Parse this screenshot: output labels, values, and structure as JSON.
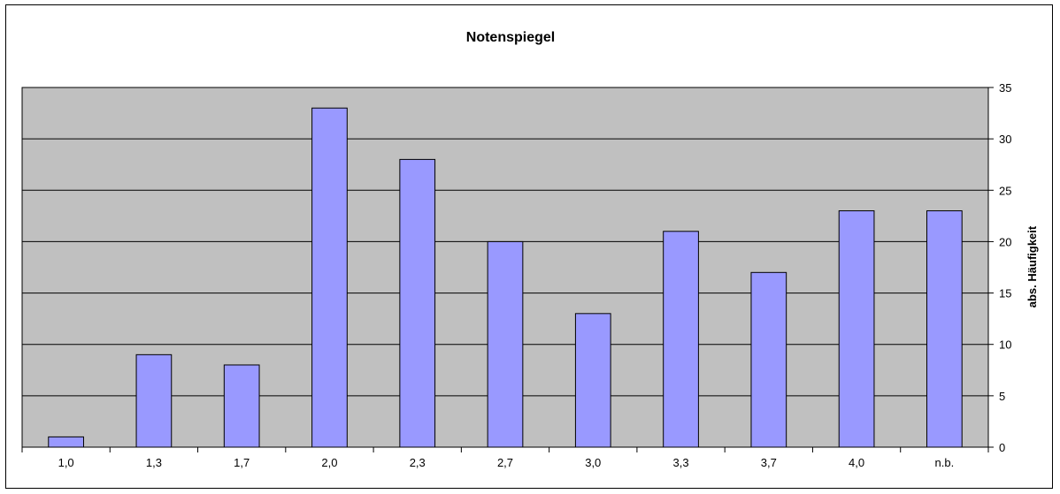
{
  "chart_data": {
    "type": "bar",
    "title": "Notenspiegel",
    "ylabel": "abs. Häufigkeit",
    "xlabel": "",
    "categories": [
      "1,0",
      "1,3",
      "1,7",
      "2,0",
      "2,3",
      "2,7",
      "3,0",
      "3,3",
      "3,7",
      "4,0",
      "n.b."
    ],
    "values": [
      1,
      9,
      8,
      33,
      28,
      20,
      13,
      21,
      17,
      23,
      23
    ],
    "ylim": [
      0,
      35
    ],
    "yticks": [
      0,
      5,
      10,
      15,
      20,
      25,
      30,
      35
    ],
    "y_axis_side": "right",
    "grid": true,
    "legend": "none",
    "colors": {
      "bar_fill": "#9999ff",
      "bar_stroke": "#000000",
      "plot_background": "#c0c0c0",
      "gridline": "#000000"
    }
  }
}
